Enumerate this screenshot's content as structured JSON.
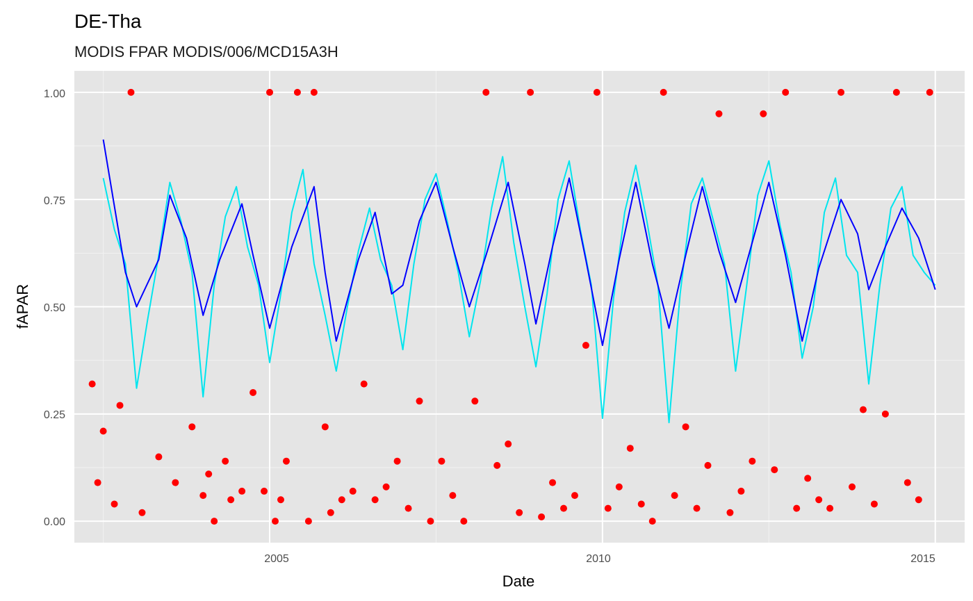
{
  "chart_data": {
    "type": "line",
    "title": "DE-Tha",
    "subtitle": "MODIS FPAR MODIS/006/MCD15A3H",
    "xlabel": "Date",
    "ylabel": "fAPAR",
    "x_ticks": [
      "2005",
      "2010",
      "2015"
    ],
    "y_ticks": [
      "0.00",
      "0.25",
      "0.50",
      "0.75",
      "1.00"
    ],
    "xlim": [
      "2002-01-25",
      "2015-06-10"
    ],
    "ylim": [
      -0.05,
      1.05
    ],
    "grid": true,
    "background": "#e5e5e5",
    "series": [
      {
        "name": "",
        "type": "line",
        "color": "#0000ff",
        "x": [
          "2002-07",
          "2002-11",
          "2003-01",
          "2003-05",
          "2003-07",
          "2003-10",
          "2004-01",
          "2004-04",
          "2004-08",
          "2004-10",
          "2005-01",
          "2005-05",
          "2005-09",
          "2005-11",
          "2006-01",
          "2006-05",
          "2006-08",
          "2006-11",
          "2007-01",
          "2007-04",
          "2007-07",
          "2007-10",
          "2008-01",
          "2008-04",
          "2008-08",
          "2008-11",
          "2009-01",
          "2009-04",
          "2009-07",
          "2009-10",
          "2010-01",
          "2010-04",
          "2010-07",
          "2010-10",
          "2011-01",
          "2011-04",
          "2011-07",
          "2011-10",
          "2012-01",
          "2012-04",
          "2012-07",
          "2012-10",
          "2013-01",
          "2013-04",
          "2013-08",
          "2013-11",
          "2014-01",
          "2014-04",
          "2014-07",
          "2014-10",
          "2015-01"
        ],
        "values": [
          0.89,
          0.58,
          0.5,
          0.61,
          0.76,
          0.66,
          0.48,
          0.61,
          0.74,
          0.62,
          0.45,
          0.64,
          0.78,
          0.58,
          0.42,
          0.61,
          0.72,
          0.53,
          0.55,
          0.7,
          0.79,
          0.64,
          0.5,
          0.62,
          0.79,
          0.6,
          0.46,
          0.64,
          0.8,
          0.61,
          0.41,
          0.61,
          0.79,
          0.6,
          0.45,
          0.62,
          0.78,
          0.63,
          0.51,
          0.65,
          0.79,
          0.62,
          0.42,
          0.59,
          0.75,
          0.67,
          0.54,
          0.64,
          0.73,
          0.66,
          0.54
        ]
      },
      {
        "name": "",
        "type": "line",
        "color": "#00e5ee",
        "x": [
          "2002-07",
          "2002-09",
          "2002-11",
          "2003-01",
          "2003-03",
          "2003-05",
          "2003-07",
          "2003-09",
          "2003-11",
          "2004-01",
          "2004-03",
          "2004-05",
          "2004-07",
          "2004-09",
          "2004-11",
          "2005-01",
          "2005-03",
          "2005-05",
          "2005-07",
          "2005-09",
          "2005-11",
          "2006-01",
          "2006-03",
          "2006-05",
          "2006-07",
          "2006-09",
          "2006-11",
          "2007-01",
          "2007-03",
          "2007-05",
          "2007-07",
          "2007-09",
          "2007-11",
          "2008-01",
          "2008-03",
          "2008-05",
          "2008-07",
          "2008-09",
          "2008-11",
          "2009-01",
          "2009-03",
          "2009-05",
          "2009-07",
          "2009-09",
          "2009-11",
          "2010-01",
          "2010-03",
          "2010-05",
          "2010-07",
          "2010-09",
          "2010-11",
          "2011-01",
          "2011-03",
          "2011-05",
          "2011-07",
          "2011-09",
          "2011-11",
          "2012-01",
          "2012-03",
          "2012-05",
          "2012-07",
          "2012-09",
          "2012-11",
          "2013-01",
          "2013-03",
          "2013-05",
          "2013-07",
          "2013-09",
          "2013-11",
          "2014-01",
          "2014-03",
          "2014-05",
          "2014-07",
          "2014-09",
          "2014-11",
          "2015-01"
        ],
        "values": [
          0.8,
          0.68,
          0.6,
          0.31,
          0.47,
          0.62,
          0.79,
          0.7,
          0.58,
          0.29,
          0.55,
          0.71,
          0.78,
          0.64,
          0.55,
          0.37,
          0.53,
          0.72,
          0.82,
          0.6,
          0.48,
          0.35,
          0.5,
          0.63,
          0.73,
          0.61,
          0.55,
          0.4,
          0.6,
          0.75,
          0.81,
          0.7,
          0.58,
          0.43,
          0.56,
          0.73,
          0.85,
          0.65,
          0.5,
          0.36,
          0.53,
          0.75,
          0.84,
          0.68,
          0.55,
          0.24,
          0.52,
          0.72,
          0.83,
          0.7,
          0.55,
          0.23,
          0.53,
          0.74,
          0.8,
          0.7,
          0.6,
          0.35,
          0.55,
          0.76,
          0.84,
          0.69,
          0.58,
          0.38,
          0.5,
          0.72,
          0.8,
          0.62,
          0.58,
          0.32,
          0.55,
          0.73,
          0.78,
          0.62,
          0.58,
          0.55
        ]
      },
      {
        "name": "",
        "type": "scatter",
        "color": "#ff0000",
        "x": [
          "2002-05",
          "2002-06",
          "2002-07",
          "2002-09",
          "2002-10",
          "2002-12",
          "2003-02",
          "2003-05",
          "2003-08",
          "2003-11",
          "2004-01",
          "2004-02",
          "2004-03",
          "2004-05",
          "2004-06",
          "2004-08",
          "2004-10",
          "2004-12",
          "2005-01",
          "2005-02",
          "2005-03",
          "2005-04",
          "2005-06",
          "2005-08",
          "2005-09",
          "2005-11",
          "2005-12",
          "2006-02",
          "2006-04",
          "2006-06",
          "2006-08",
          "2006-10",
          "2006-12",
          "2007-02",
          "2007-04",
          "2007-06",
          "2007-08",
          "2007-10",
          "2007-12",
          "2008-02",
          "2008-04",
          "2008-06",
          "2008-08",
          "2008-10",
          "2008-12",
          "2009-02",
          "2009-04",
          "2009-06",
          "2009-08",
          "2009-10",
          "2009-12",
          "2010-02",
          "2010-04",
          "2010-06",
          "2010-08",
          "2010-10",
          "2010-12",
          "2011-02",
          "2011-04",
          "2011-06",
          "2011-08",
          "2011-10",
          "2011-12",
          "2012-02",
          "2012-04",
          "2012-06",
          "2012-08",
          "2012-10",
          "2012-12",
          "2013-02",
          "2013-04",
          "2013-06",
          "2013-08",
          "2013-10",
          "2013-12",
          "2014-02",
          "2014-04",
          "2014-06",
          "2014-08",
          "2014-10",
          "2014-12"
        ],
        "values": [
          0.32,
          0.09,
          0.21,
          0.04,
          0.27,
          1.0,
          0.02,
          0.15,
          0.09,
          0.22,
          0.06,
          0.11,
          0.0,
          0.14,
          0.05,
          0.07,
          0.3,
          0.07,
          1.0,
          0.0,
          0.05,
          0.14,
          1.0,
          0.0,
          1.0,
          0.22,
          0.02,
          0.05,
          0.07,
          0.32,
          0.05,
          0.08,
          0.14,
          0.03,
          0.28,
          0.0,
          0.14,
          0.06,
          0.0,
          0.28,
          1.0,
          0.13,
          0.18,
          0.02,
          1.0,
          0.01,
          0.09,
          0.03,
          0.06,
          0.41,
          1.0,
          0.03,
          0.08,
          0.17,
          0.04,
          0.0,
          1.0,
          0.06,
          0.22,
          0.03,
          0.13,
          0.95,
          0.02,
          0.07,
          0.14,
          0.95,
          0.12,
          1.0,
          0.03,
          0.1,
          0.05,
          0.03,
          1.0,
          0.08,
          0.26,
          0.04,
          0.25,
          1.0,
          0.09,
          0.05,
          1.0
        ]
      }
    ]
  }
}
